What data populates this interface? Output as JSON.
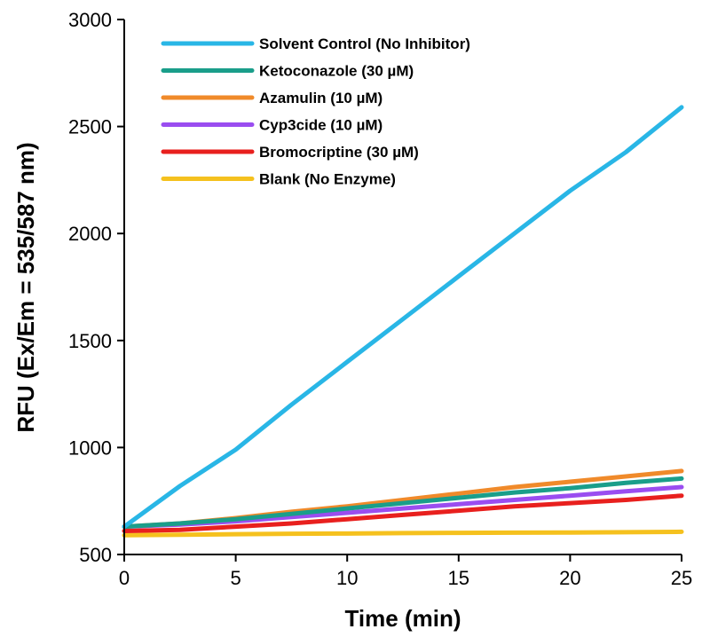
{
  "chart_data": {
    "type": "line",
    "xlabel": "Time (min)",
    "ylabel": "RFU (Ex/Em = 535/587 nm)",
    "xlim": [
      0,
      25
    ],
    "ylim": [
      500,
      3000
    ],
    "xticks": [
      0,
      5,
      10,
      15,
      20,
      25
    ],
    "yticks": [
      500,
      1000,
      1500,
      2000,
      2500,
      3000
    ],
    "grid": false,
    "legend_position": "top-left",
    "x": [
      0,
      2.5,
      5,
      7.5,
      10,
      12.5,
      15,
      17.5,
      20,
      22.5,
      25
    ],
    "series": [
      {
        "name": "Solvent Control (No Inhibitor)",
        "color": "#29b6e6",
        "values": [
          630,
          820,
          990,
          1200,
          1400,
          1600,
          1800,
          2000,
          2200,
          2380,
          2590
        ]
      },
      {
        "name": "Ketoconazole (30 µM)",
        "color": "#1a9e8a",
        "values": [
          630,
          645,
          665,
          690,
          715,
          740,
          765,
          790,
          810,
          835,
          855
        ]
      },
      {
        "name": "Azamulin (10 µM)",
        "color": "#f08a2a",
        "values": [
          630,
          645,
          670,
          700,
          725,
          755,
          785,
          815,
          840,
          865,
          890
        ]
      },
      {
        "name": "Cyp3cide (10 µM)",
        "color": "#9a4df0",
        "values": [
          630,
          640,
          655,
          675,
          695,
          715,
          735,
          755,
          775,
          795,
          815
        ]
      },
      {
        "name": "Bromocriptine (30 µM)",
        "color": "#e8201e",
        "values": [
          610,
          615,
          630,
          645,
          665,
          685,
          705,
          725,
          740,
          755,
          775
        ]
      },
      {
        "name": "Blank (No Enzyme)",
        "color": "#f5c11e",
        "values": [
          590,
          592,
          595,
          597,
          598,
          600,
          601,
          602,
          603,
          604,
          606
        ]
      }
    ]
  }
}
